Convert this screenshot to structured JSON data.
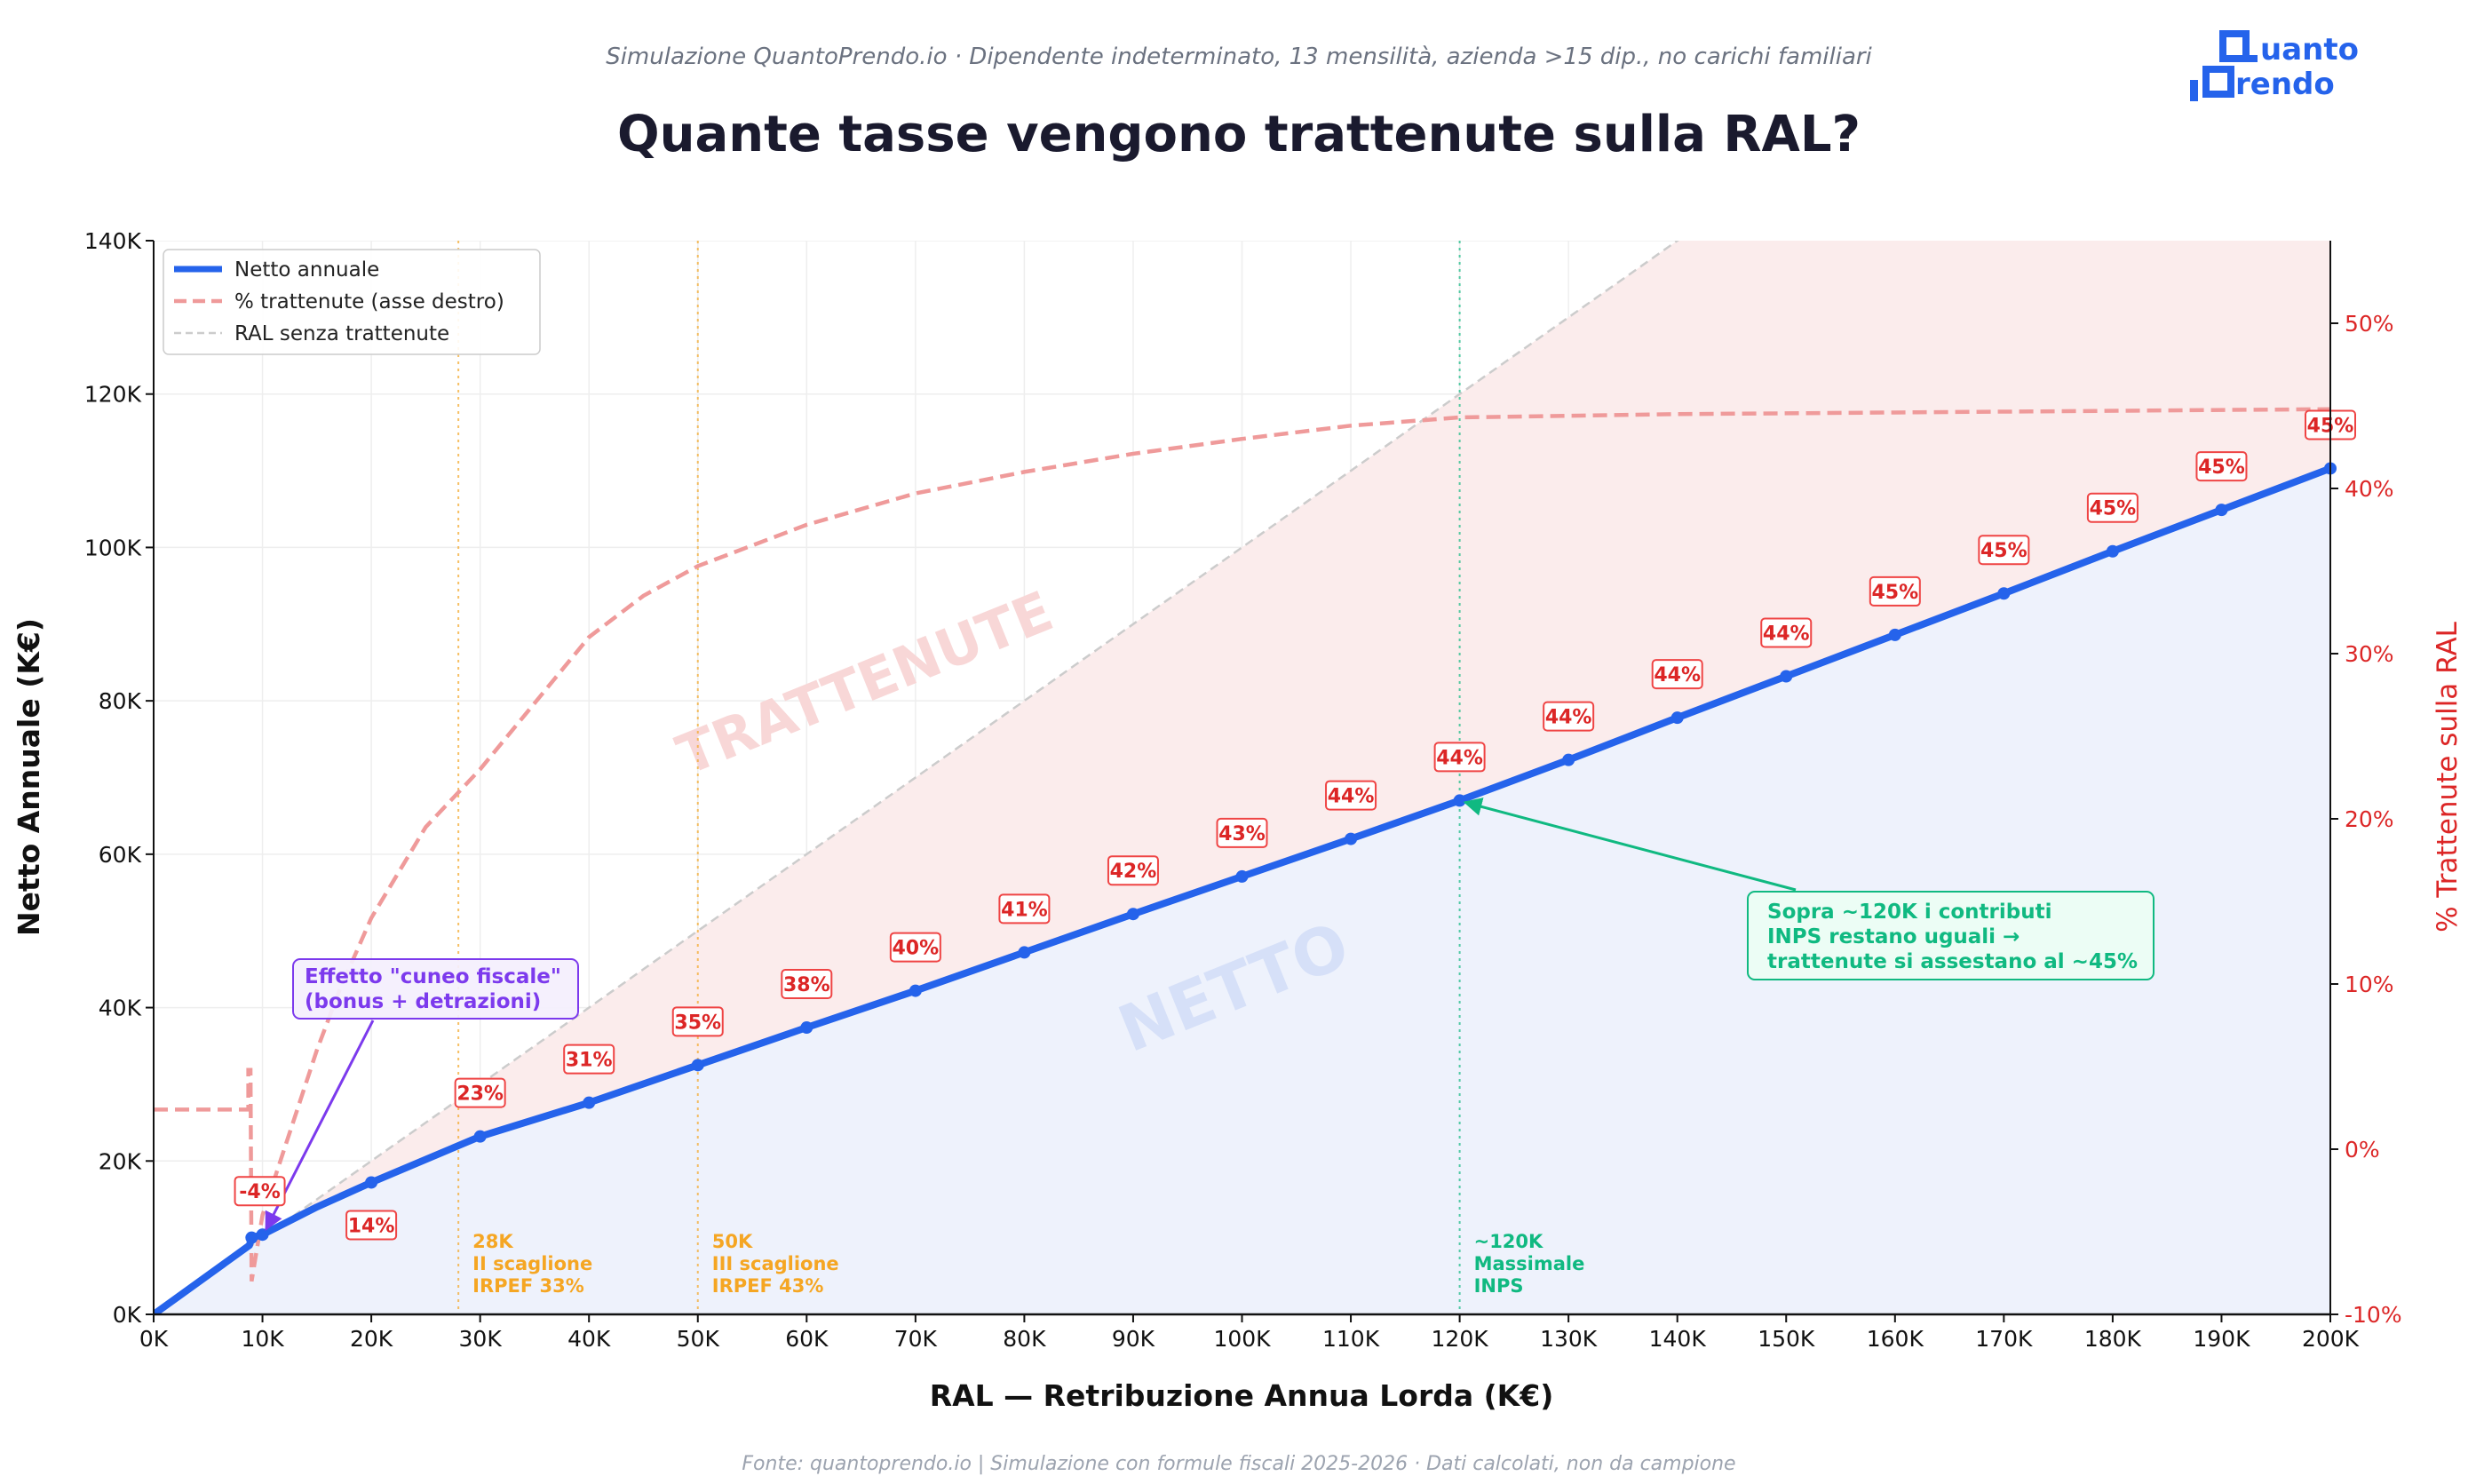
{
  "subtitle": "Simulazione QuantoPrendo.io · Dipendente indeterminato, 13 mensilità, azienda >15 dip., no carichi familiari",
  "logo": {
    "line1": "Quanto",
    "line2": "Prendo"
  },
  "footer": "Fonte: quantoprendo.io | Simulazione con formule fiscali 2025-2026 · Dati calcolati, non da campione",
  "colors": {
    "netto": "#2563eb",
    "trattenute": "#ef9a9a",
    "ral": "#cccccc",
    "label_red": "#dc2626",
    "brackets": "#f5a623",
    "inps": "#10b981",
    "annotation_purple": "#7c3aed"
  },
  "chart_data": {
    "type": "line",
    "title": "Quante tasse vengono trattenute sulla RAL?",
    "xlabel": "RAL — Retribuzione Annua Lorda (K€)",
    "ylabel": "Netto Annuale (K€)",
    "y2label": "% Trattenute sulla RAL",
    "xlim": [
      0,
      200
    ],
    "ylim": [
      0,
      140
    ],
    "y2lim": [
      -10,
      55
    ],
    "xticks": [
      "0K",
      "10K",
      "20K",
      "30K",
      "40K",
      "50K",
      "60K",
      "70K",
      "80K",
      "90K",
      "100K",
      "110K",
      "120K",
      "130K",
      "140K",
      "150K",
      "160K",
      "170K",
      "180K",
      "190K",
      "200K"
    ],
    "yticks": [
      "0K",
      "20K",
      "40K",
      "60K",
      "80K",
      "100K",
      "120K",
      "140K"
    ],
    "y2ticks": [
      "-10%",
      "0%",
      "10%",
      "20%",
      "30%",
      "40%",
      "50%"
    ],
    "grid": true,
    "legend_position": "top-left",
    "legend": [
      "Netto annuale",
      "% trattenute (asse destro)",
      "RAL senza trattenute"
    ],
    "netto_series": {
      "name": "Netto annuale",
      "x": [
        0,
        8.8,
        9,
        10,
        15,
        20,
        30,
        40,
        50,
        60,
        70,
        80,
        90,
        100,
        110,
        120,
        130,
        140,
        150,
        160,
        170,
        180,
        190,
        200
      ],
      "y": [
        0,
        9.0,
        10.0,
        10.4,
        14.0,
        17.2,
        23.2,
        27.6,
        32.5,
        37.4,
        42.2,
        47.2,
        52.2,
        57.1,
        62.0,
        67.0,
        72.3,
        77.8,
        83.2,
        88.6,
        94.0,
        99.5,
        104.9,
        110.3
      ]
    },
    "markers": {
      "x": [
        9,
        10,
        20,
        30,
        40,
        50,
        60,
        70,
        80,
        90,
        100,
        110,
        120,
        130,
        140,
        150,
        160,
        170,
        180,
        190,
        200
      ],
      "y": [
        10.0,
        10.4,
        17.2,
        23.2,
        27.6,
        32.5,
        37.4,
        42.2,
        47.2,
        52.2,
        57.1,
        62.0,
        67.0,
        72.3,
        77.8,
        83.2,
        88.6,
        94.0,
        99.5,
        104.9,
        110.3
      ],
      "labels": [
        "",
        "-4%",
        "14%",
        "23%",
        "31%",
        "35%",
        "38%",
        "40%",
        "41%",
        "42%",
        "43%",
        "44%",
        "44%",
        "44%",
        "44%",
        "44%",
        "45%",
        "45%",
        "45%",
        "45%",
        "45%"
      ]
    },
    "trattenute_series": {
      "name": "% trattenute (asse destro)",
      "x": [
        0,
        8.7,
        8.7,
        8.9,
        9.0,
        10,
        12,
        15,
        17,
        20,
        25,
        30,
        35,
        40,
        45,
        50,
        60,
        70,
        80,
        90,
        100,
        110,
        120,
        140,
        160,
        200
      ],
      "y": [
        2.4,
        2.4,
        4.8,
        4.8,
        -8,
        -4,
        0,
        6,
        9.5,
        14,
        19.5,
        23,
        27,
        31,
        33.5,
        35.3,
        37.8,
        39.7,
        41,
        42.1,
        43,
        43.8,
        44.3,
        44.5,
        44.6,
        44.8
      ]
    },
    "ral_series": {
      "name": "RAL senza trattenute",
      "x": [
        0,
        200
      ],
      "y": [
        0,
        200
      ]
    },
    "vlines": [
      {
        "x": 28,
        "label": [
          "28K",
          "II scaglione",
          "IRPEF 33%"
        ]
      },
      {
        "x": 50,
        "label": [
          "50K",
          "III scaglione",
          "IRPEF 43%"
        ]
      },
      {
        "x": 120,
        "label": [
          "~120K",
          "Massimale",
          "INPS"
        ]
      }
    ],
    "area_labels": {
      "trattenute": "TRATTENUTE",
      "netto": "NETTO"
    },
    "annotations": [
      {
        "text": [
          "Effetto \"cuneo fiscale\"",
          "(bonus + detrazioni)"
        ],
        "target_x": 10,
        "target_y": 10.4
      },
      {
        "text": [
          "Sopra ~120K i contributi",
          "INPS restano uguali →",
          "trattenute si assestano al ~45%"
        ],
        "target_x": 120,
        "target_y": 67.0
      }
    ]
  }
}
